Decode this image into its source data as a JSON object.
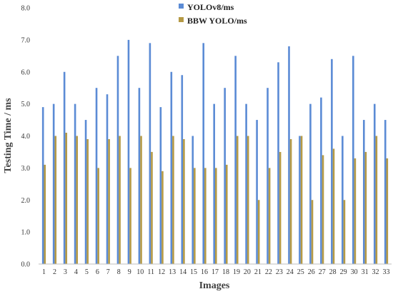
{
  "chart_data": {
    "type": "bar",
    "xlabel": "Images",
    "ylabel": "Testing Time / ms",
    "ylim": [
      0,
      8
    ],
    "yticks": [
      "0.0",
      "1.0",
      "2.0",
      "3.0",
      "4.0",
      "5.0",
      "6.0",
      "7.0",
      "8.0"
    ],
    "grid": false,
    "legend_position": "top",
    "categories": [
      "1",
      "2",
      "3",
      "4",
      "5",
      "6",
      "7",
      "8",
      "9",
      "10",
      "11",
      "12",
      "13",
      "14",
      "15",
      "16",
      "17",
      "18",
      "19",
      "20",
      "21",
      "22",
      "23",
      "24",
      "25",
      "26",
      "27",
      "28",
      "29",
      "30",
      "31",
      "32",
      "33"
    ],
    "series": [
      {
        "name": "YOLOv8/ms",
        "color": "#5b8bd5",
        "values": [
          4.9,
          5.0,
          6.0,
          5.0,
          4.5,
          5.5,
          5.3,
          6.5,
          7.0,
          5.5,
          6.9,
          4.9,
          6.0,
          5.9,
          4.0,
          6.9,
          5.0,
          5.5,
          6.5,
          5.0,
          4.5,
          5.5,
          6.3,
          6.8,
          4.0,
          5.0,
          5.2,
          6.4,
          4.0,
          6.5,
          4.5,
          5.0,
          4.5
        ]
      },
      {
        "name": "BBW YOLO/ms",
        "color": "#b59a45",
        "values": [
          3.1,
          4.0,
          4.1,
          4.0,
          3.9,
          3.0,
          3.9,
          4.0,
          3.0,
          4.0,
          3.5,
          2.9,
          4.0,
          3.9,
          3.0,
          3.0,
          3.0,
          3.1,
          4.0,
          4.0,
          2.0,
          3.0,
          3.5,
          3.9,
          4.0,
          2.0,
          3.4,
          3.6,
          2.0,
          3.3,
          3.5,
          4.0,
          3.3
        ]
      }
    ]
  }
}
